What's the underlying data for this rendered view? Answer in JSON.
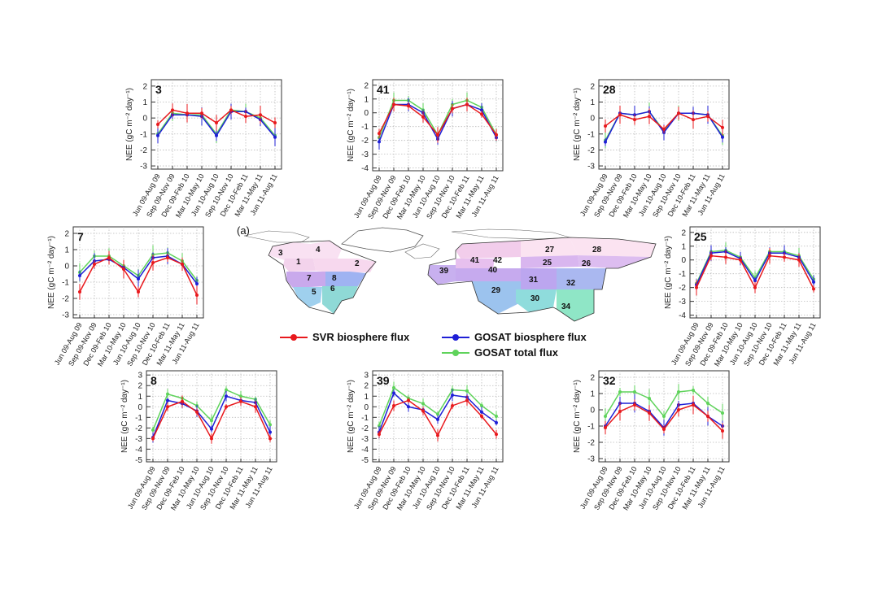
{
  "map": {
    "label": "(a)",
    "regions": [
      {
        "id": "1",
        "color": "#f3d3ec"
      },
      {
        "id": "2",
        "color": "#f7d8ee"
      },
      {
        "id": "3",
        "color": "#f9e1f2"
      },
      {
        "id": "4",
        "color": "#f9e1f2"
      },
      {
        "id": "7",
        "color": "#c9a9ec"
      },
      {
        "id": "8",
        "color": "#9fb3f2"
      },
      {
        "id": "5",
        "color": "#9fd0ee"
      },
      {
        "id": "6",
        "color": "#8fd9d6"
      },
      {
        "id": "27",
        "color": "#fbe3f1"
      },
      {
        "id": "28",
        "color": "#fbe3f1"
      },
      {
        "id": "42",
        "color": "#f2cdeb"
      },
      {
        "id": "41",
        "color": "#e7c0ee"
      },
      {
        "id": "25",
        "color": "#d9b6ef"
      },
      {
        "id": "26",
        "color": "#ddbdf0"
      },
      {
        "id": "39",
        "color": "#c8b0ef"
      },
      {
        "id": "40",
        "color": "#c6aaee"
      },
      {
        "id": "31",
        "color": "#bca6ef"
      },
      {
        "id": "32",
        "color": "#aab8f0"
      },
      {
        "id": "29",
        "color": "#9cc3ee"
      },
      {
        "id": "30",
        "color": "#8fdcdc"
      },
      {
        "id": "34",
        "color": "#8fe6c6"
      }
    ]
  },
  "legend": {
    "svr": {
      "label": "SVR biosphere flux",
      "color": "#e8191d"
    },
    "gosat_bio": {
      "label": "GOSAT biosphere flux",
      "color": "#1f1fd6"
    },
    "gosat_total": {
      "label": "GOSAT total flux",
      "color": "#5fd35b"
    }
  },
  "chart_data": [
    {
      "type": "line",
      "title": "3",
      "ylabel": "NEE (gC m⁻² day⁻¹)",
      "ylim": [
        -3.2,
        2.4
      ],
      "yticks": [
        -3,
        -2,
        -1,
        0,
        1,
        2
      ],
      "grid": true,
      "categories": [
        "Jun 09-Aug 09",
        "Sep 09-Nov 09",
        "Dec 09-Feb 10",
        "Mar 10-May 10",
        "Jun 10-Aug 10",
        "Sep 10-Nov 10",
        "Dec 10-Feb 11",
        "Mar 11-May 11",
        "Jun 11-Aug 11"
      ],
      "series": [
        {
          "name": "SVR biosphere flux",
          "values": [
            -0.4,
            0.5,
            0.3,
            0.3,
            -0.3,
            0.5,
            0.1,
            0.2,
            -0.3
          ]
        },
        {
          "name": "GOSAT biosphere flux",
          "values": [
            -1.1,
            0.2,
            0.2,
            0.1,
            -1.1,
            0.4,
            0.4,
            -0.1,
            -1.2
          ]
        },
        {
          "name": "GOSAT total flux",
          "values": [
            -1.0,
            0.3,
            0.2,
            0.2,
            -1.0,
            0.5,
            0.4,
            0.0,
            -1.1
          ]
        }
      ]
    },
    {
      "type": "line",
      "title": "41",
      "ylabel": "NEE (gC m⁻² day⁻¹)",
      "ylim": [
        -4.2,
        2.4
      ],
      "yticks": [
        -4,
        -3,
        -2,
        -1,
        0,
        1,
        2
      ],
      "grid": true,
      "categories": [
        "Jun 09-Aug 09",
        "Sep 09-Nov 09",
        "Dec 09-Feb 10",
        "Mar 10-May 10",
        "Jun 10-Aug 10",
        "Sep 10-Nov 10",
        "Dec 10-Feb 11",
        "Mar 11-May 11",
        "Jun 11-Aug 11"
      ],
      "series": [
        {
          "name": "SVR biosphere flux",
          "values": [
            -1.5,
            0.6,
            0.5,
            -0.3,
            -1.6,
            0.3,
            0.6,
            -0.1,
            -1.6
          ]
        },
        {
          "name": "GOSAT biosphere flux",
          "values": [
            -2.1,
            0.6,
            0.6,
            0.0,
            -1.9,
            0.3,
            0.6,
            0.2,
            -1.8
          ]
        },
        {
          "name": "GOSAT total flux",
          "values": [
            -1.8,
            0.9,
            0.9,
            0.2,
            -1.6,
            0.6,
            0.9,
            0.4,
            -1.6
          ]
        }
      ]
    },
    {
      "type": "line",
      "title": "28",
      "ylabel": "NEE (gC m⁻² day⁻¹)",
      "ylim": [
        -3.2,
        2.4
      ],
      "yticks": [
        -3,
        -2,
        -1,
        0,
        1,
        2
      ],
      "grid": true,
      "categories": [
        "Jun 09-Aug 09",
        "Sep 09-Nov 09",
        "Dec 09-Feb 10",
        "Mar 10-May 10",
        "Jun 10-Aug 10",
        "Sep 10-Nov 10",
        "Dec 10-Feb 11",
        "Mar 11-May 11",
        "Jun 11-Aug 11"
      ],
      "series": [
        {
          "name": "SVR biosphere flux",
          "values": [
            -0.5,
            0.2,
            -0.1,
            0.1,
            -0.7,
            0.3,
            -0.1,
            0.1,
            -0.6
          ]
        },
        {
          "name": "GOSAT biosphere flux",
          "values": [
            -1.5,
            0.3,
            0.2,
            0.4,
            -0.9,
            0.3,
            0.3,
            0.2,
            -1.2
          ]
        },
        {
          "name": "GOSAT total flux",
          "values": [
            -1.4,
            0.3,
            0.2,
            0.4,
            -0.8,
            0.3,
            0.3,
            0.2,
            -1.1
          ]
        }
      ]
    },
    {
      "type": "line",
      "title": "7",
      "ylabel": "NEE (gC m⁻² day⁻¹)",
      "ylim": [
        -3.2,
        2.4
      ],
      "yticks": [
        -3,
        -2,
        -1,
        0,
        1,
        2
      ],
      "grid": true,
      "categories": [
        "Jun 09-Aug 09",
        "Sep 09-Nov 09",
        "Dec 09-Feb 10",
        "Mar 10-May 10",
        "Jun 10-Aug 10",
        "Sep 10-Nov 10",
        "Dec 10-Feb 11",
        "Mar 11-May 11",
        "Jun 11-Aug 11"
      ],
      "series": [
        {
          "name": "SVR biosphere flux",
          "values": [
            -1.6,
            0.1,
            0.5,
            -0.2,
            -1.6,
            0.2,
            0.5,
            0.1,
            -1.8
          ]
        },
        {
          "name": "GOSAT biosphere flux",
          "values": [
            -0.6,
            0.3,
            0.4,
            -0.1,
            -0.8,
            0.5,
            0.6,
            0.1,
            -1.1
          ]
        },
        {
          "name": "GOSAT total flux",
          "values": [
            -0.4,
            0.6,
            0.6,
            0.0,
            -0.6,
            0.7,
            0.8,
            0.3,
            -0.9
          ]
        }
      ]
    },
    {
      "type": "line",
      "title": "25",
      "ylabel": "NEE (gC m⁻² day⁻¹)",
      "ylim": [
        -4.2,
        2.4
      ],
      "yticks": [
        -4,
        -3,
        -2,
        -1,
        0,
        1,
        2
      ],
      "grid": true,
      "categories": [
        "Jun 09-Aug 09",
        "Sep 09-Nov 09",
        "Dec 09-Feb 10",
        "Mar 10-May 10",
        "Jun 10-Aug 10",
        "Sep 10-Nov 10",
        "Dec 10-Feb 11",
        "Mar 11-May 11",
        "Jun 11-Aug 11"
      ],
      "series": [
        {
          "name": "SVR biosphere flux",
          "values": [
            -2.0,
            0.3,
            0.2,
            0.0,
            -2.0,
            0.3,
            0.2,
            0.0,
            -2.1
          ]
        },
        {
          "name": "GOSAT biosphere flux",
          "values": [
            -1.8,
            0.5,
            0.6,
            0.1,
            -1.5,
            0.5,
            0.5,
            0.2,
            -1.6
          ]
        },
        {
          "name": "GOSAT total flux",
          "values": [
            -1.7,
            0.6,
            0.7,
            0.2,
            -1.3,
            0.6,
            0.6,
            0.3,
            -1.4
          ]
        }
      ]
    },
    {
      "type": "line",
      "title": "8",
      "ylabel": "NEE (gC m⁻² day⁻¹)",
      "ylim": [
        -5.2,
        3.4
      ],
      "yticks": [
        -5,
        -4,
        -3,
        -2,
        -1,
        0,
        1,
        2,
        3
      ],
      "grid": true,
      "categories": [
        "Jun 09-Aug 09",
        "Sep 09-Nov 09",
        "Dec 09-Feb 10",
        "Mar 10-May 10",
        "Jun 10-Aug 10",
        "Sep 10-Nov 10",
        "Dec 10-Feb 11",
        "Mar 11-May 11",
        "Jun 11-Aug 11"
      ],
      "series": [
        {
          "name": "SVR biosphere flux",
          "values": [
            -3.0,
            0.0,
            0.5,
            -0.5,
            -3.0,
            0.0,
            0.5,
            0.0,
            -3.0
          ]
        },
        {
          "name": "GOSAT biosphere flux",
          "values": [
            -2.9,
            0.6,
            0.3,
            -0.4,
            -2.1,
            1.0,
            0.6,
            0.4,
            -2.4
          ]
        },
        {
          "name": "GOSAT total flux",
          "values": [
            -2.2,
            1.2,
            0.8,
            0.1,
            -1.3,
            1.6,
            1.0,
            0.7,
            -1.7
          ]
        }
      ]
    },
    {
      "type": "line",
      "title": "39",
      "ylabel": "NEE (gC m⁻² day⁻¹)",
      "ylim": [
        -5.2,
        3.4
      ],
      "yticks": [
        -5,
        -4,
        -3,
        -2,
        -1,
        0,
        1,
        2,
        3
      ],
      "grid": true,
      "categories": [
        "Jun 09-Aug 09",
        "Sep 09-Nov 09",
        "Dec 09-Feb 10",
        "Mar 10-May 10",
        "Jun 10-Aug 10",
        "Sep 10-Nov 10",
        "Dec 10-Feb 11",
        "Mar 11-May 11",
        "Jun 11-Aug 11"
      ],
      "series": [
        {
          "name": "SVR biosphere flux",
          "values": [
            -2.6,
            0.1,
            0.6,
            -0.4,
            -2.7,
            0.1,
            0.6,
            -0.9,
            -2.6
          ]
        },
        {
          "name": "GOSAT biosphere flux",
          "values": [
            -2.4,
            1.3,
            0.0,
            -0.3,
            -1.2,
            1.1,
            0.9,
            -0.5,
            -1.5
          ]
        },
        {
          "name": "GOSAT total flux",
          "values": [
            -1.8,
            1.8,
            0.8,
            0.3,
            -0.7,
            1.6,
            1.5,
            0.1,
            -0.9
          ]
        }
      ]
    },
    {
      "type": "line",
      "title": "32",
      "ylabel": "NEE (gC m⁻² day⁻¹)",
      "ylim": [
        -3.2,
        2.4
      ],
      "yticks": [
        -3,
        -2,
        -1,
        0,
        1,
        2
      ],
      "grid": true,
      "categories": [
        "Jun 09-Aug 09",
        "Sep 09-Nov 09",
        "Dec 09-Feb 10",
        "Mar 10-May 10",
        "Jun 10-Aug 10",
        "Sep 10-Nov 10",
        "Dec 10-Feb 11",
        "Mar 11-May 11",
        "Jun 11-Aug 11"
      ],
      "series": [
        {
          "name": "SVR biosphere flux",
          "values": [
            -1.1,
            -0.1,
            0.3,
            -0.2,
            -1.2,
            0.0,
            0.3,
            -0.4,
            -1.3
          ]
        },
        {
          "name": "GOSAT biosphere flux",
          "values": [
            -1.0,
            0.4,
            0.4,
            -0.1,
            -1.1,
            0.3,
            0.4,
            -0.4,
            -1.0
          ]
        },
        {
          "name": "GOSAT total flux",
          "values": [
            -0.4,
            1.1,
            1.1,
            0.7,
            -0.4,
            1.1,
            1.2,
            0.4,
            -0.2
          ]
        }
      ]
    }
  ]
}
